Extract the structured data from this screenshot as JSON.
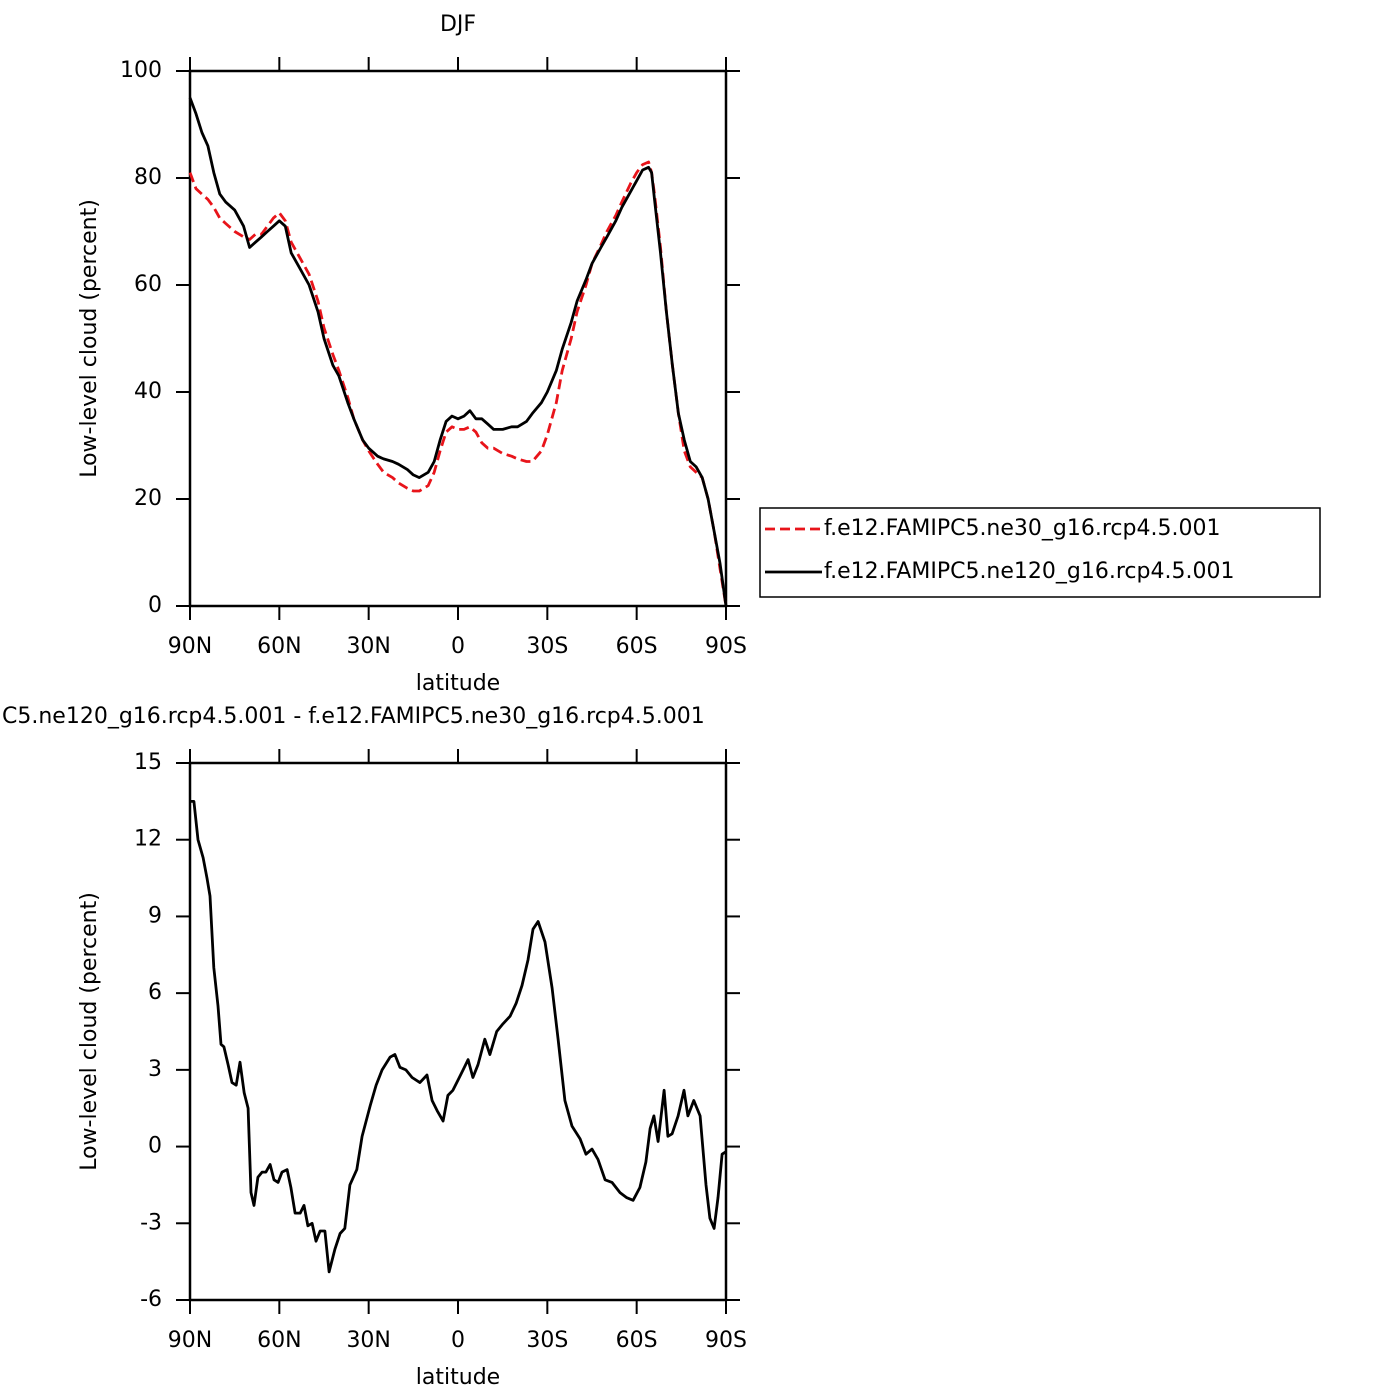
{
  "chart_data": [
    {
      "type": "line",
      "title": "DJF",
      "xlabel": "latitude",
      "ylabel": "Low-level cloud (percent)",
      "xlim": [
        90,
        -90
      ],
      "ylim": [
        0,
        100
      ],
      "xticks": [
        {
          "value": 90,
          "label": "90N"
        },
        {
          "value": 60,
          "label": "60N"
        },
        {
          "value": 30,
          "label": "30N"
        },
        0,
        {
          "value": -30,
          "label": "30S"
        },
        {
          "value": -60,
          "label": "60S"
        },
        {
          "value": -90,
          "label": "90S"
        }
      ],
      "yticks": [
        0,
        20,
        40,
        60,
        80,
        100
      ],
      "legend": "right",
      "x": [
        90,
        88,
        86,
        84,
        82,
        80,
        78,
        75,
        72,
        70,
        68,
        66,
        64,
        62,
        60,
        58,
        56,
        53,
        50,
        47,
        45,
        42,
        40,
        37,
        35,
        32,
        30,
        27,
        25,
        22,
        20,
        17,
        15,
        13,
        10,
        8,
        6,
        4,
        2,
        0,
        -2,
        -4,
        -6,
        -8,
        -10,
        -12,
        -15,
        -18,
        -20,
        -23,
        -25,
        -28,
        -30,
        -33,
        -35,
        -38,
        -40,
        -43,
        -45,
        -48,
        -50,
        -53,
        -55,
        -58,
        -60,
        -62,
        -64,
        -65,
        -66,
        -68,
        -70,
        -72,
        -74,
        -76,
        -78,
        -80,
        -82,
        -84,
        -86,
        -88,
        -90
      ],
      "series": [
        {
          "name": "f.e12.FAMIPC5.ne30_g16.rcp4.5.001",
          "color": "#e8141a",
          "dashed": true,
          "values": [
            81,
            78,
            77,
            76,
            74.5,
            72.5,
            71.5,
            70,
            69,
            68.5,
            69.5,
            69.5,
            71,
            72.5,
            73.5,
            72,
            68,
            65,
            62,
            57,
            52,
            47,
            44,
            39,
            35,
            31,
            29,
            26.5,
            25,
            24,
            23,
            22,
            21.5,
            21.5,
            22.5,
            25,
            29,
            32.5,
            33.5,
            33,
            33,
            33.5,
            32.5,
            30.5,
            29.5,
            29.5,
            28.5,
            28,
            27.5,
            27,
            27,
            29,
            32,
            38,
            44,
            50,
            55,
            60,
            64,
            67.5,
            70,
            73,
            75.5,
            79,
            81,
            82.5,
            83,
            81,
            77,
            67,
            55,
            45,
            36,
            29,
            26,
            25,
            24,
            20,
            14,
            7,
            0
          ]
        },
        {
          "name": "f.e12.FAMIPC5.ne120_g16.rcp4.5.001",
          "color": "#000000",
          "dashed": false,
          "values": [
            95,
            92,
            88.5,
            86,
            81,
            77,
            75.5,
            74,
            71,
            67,
            68,
            69,
            70,
            71,
            72,
            71,
            66,
            63,
            60,
            55,
            50,
            45,
            43,
            38,
            35,
            31,
            29.5,
            28,
            27.5,
            27,
            26.5,
            25.5,
            24.5,
            24,
            25,
            27,
            31,
            34.5,
            35.5,
            35,
            35.5,
            36.5,
            35,
            35,
            34,
            33,
            33,
            33.5,
            33.5,
            34.5,
            36,
            38,
            40,
            44,
            48,
            53,
            57,
            61,
            64,
            67,
            69,
            72,
            74.5,
            77.5,
            79.5,
            81.5,
            82,
            81,
            76,
            66,
            55,
            45,
            36,
            31,
            27,
            26,
            24,
            20,
            14,
            8,
            0
          ]
        }
      ]
    },
    {
      "type": "line",
      "title": "C5.ne120_g16.rcp4.5.001 - f.e12.FAMIPC5.ne30_g16.rcp4.5.001",
      "xlabel": "latitude",
      "ylabel": "Low-level cloud (percent)",
      "xlim": [
        90,
        -90
      ],
      "ylim": [
        -6,
        15
      ],
      "xticks": [
        {
          "value": 90,
          "label": "90N"
        },
        {
          "value": 60,
          "label": "60N"
        },
        {
          "value": 30,
          "label": "30N"
        },
        0,
        {
          "value": -30,
          "label": "30S"
        },
        {
          "value": -60,
          "label": "60S"
        },
        {
          "value": -90,
          "label": "90S"
        }
      ],
      "yticks": [
        -6,
        -3,
        0,
        3,
        6,
        9,
        12,
        15
      ],
      "x": [
        89.7,
        88.7,
        87.3,
        85.6,
        84.3,
        83.3,
        82,
        80.6,
        79.6,
        78.6,
        77.2,
        75.9,
        74.5,
        73.2,
        71.8,
        70.5,
        69.5,
        68.5,
        67.2,
        65.8,
        64.5,
        63.1,
        61.8,
        60.4,
        59.1,
        57.4,
        56.1,
        54.7,
        53,
        51.7,
        50.4,
        49,
        47.7,
        46.3,
        44.7,
        43.3,
        41.3,
        39.6,
        38,
        36.3,
        34,
        32.2,
        29.5,
        27.5,
        25.5,
        22.8,
        21.2,
        19.5,
        17.5,
        15.4,
        12.8,
        10.4,
        8.7,
        7,
        5,
        3.4,
        1.7,
        0,
        -1.7,
        -3.4,
        -5,
        -6.7,
        -9,
        -10.7,
        -13,
        -15.1,
        -17.5,
        -19.5,
        -21.5,
        -23.5,
        -25.2,
        -26.9,
        -29.2,
        -31.6,
        -33.6,
        -35.9,
        -38.3,
        -41,
        -43,
        -45,
        -47,
        -49.4,
        -51.7,
        -54.4,
        -56.7,
        -58.8,
        -61.1,
        -63.1,
        -64.5,
        -65.8,
        -67.2,
        -69.2,
        -70.5,
        -71.9,
        -73.9,
        -75.9,
        -77.2,
        -79.2,
        -81.3,
        -83.3,
        -84.6,
        -86,
        -87.3,
        -88.7,
        -90
      ],
      "series": [
        {
          "color": "#000000",
          "dashed": false,
          "values": [
            13.5,
            13.5,
            12,
            11.3,
            10.5,
            9.8,
            7,
            5.5,
            4,
            3.9,
            3.2,
            2.5,
            2.4,
            3.3,
            2.1,
            1.5,
            -1.8,
            -2.3,
            -1.2,
            -1,
            -1,
            -0.7,
            -1.3,
            -1.4,
            -1,
            -0.9,
            -1.6,
            -2.6,
            -2.6,
            -2.3,
            -3.1,
            -3,
            -3.7,
            -3.3,
            -3.3,
            -4.9,
            -4,
            -3.4,
            -3.2,
            -1.5,
            -0.9,
            0.4,
            1.6,
            2.4,
            3,
            3.5,
            3.6,
            3.1,
            3,
            2.7,
            2.5,
            2.8,
            1.8,
            1.4,
            1,
            2,
            2.2,
            2.6,
            3,
            3.4,
            2.7,
            3.2,
            4.2,
            3.6,
            4.5,
            4.8,
            5.1,
            5.6,
            6.3,
            7.3,
            8.5,
            8.8,
            8,
            6.2,
            4.2,
            1.8,
            0.8,
            0.3,
            -0.3,
            -0.1,
            -0.5,
            -1.3,
            -1.4,
            -1.8,
            -2,
            -2.1,
            -1.6,
            -0.6,
            0.7,
            1.2,
            0.2,
            2.2,
            0.4,
            0.5,
            1.2,
            2.2,
            1.2,
            1.8,
            1.2,
            -1.5,
            -2.8,
            -3.2,
            -2,
            -0.3,
            -0.2
          ]
        }
      ]
    }
  ]
}
